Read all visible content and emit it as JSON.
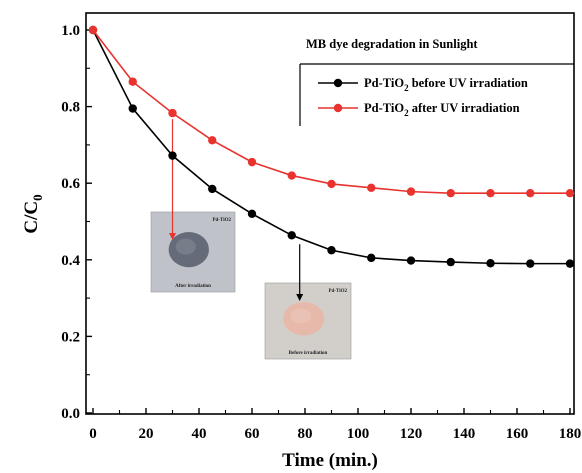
{
  "chart_data": {
    "type": "line",
    "title": "MB dye degradation in Sunlight",
    "xlabel": "Time (min.)",
    "ylabel": {
      "base": "C/C",
      "sub": "0"
    },
    "xlim": [
      0,
      180
    ],
    "ylim": [
      0.0,
      1.0
    ],
    "x_ticks": [
      "0",
      "20",
      "40",
      "60",
      "80",
      "100",
      "120",
      "140",
      "160",
      "180"
    ],
    "y_ticks": [
      "0.0",
      "0.2",
      "0.4",
      "0.6",
      "0.8",
      "1.0"
    ],
    "legend_position": "top-right",
    "x": [
      0,
      15,
      30,
      45,
      60,
      75,
      90,
      105,
      120,
      135,
      150,
      165,
      180
    ],
    "series": [
      {
        "name": {
          "pre": "Pd-TiO",
          "sub": "2",
          "post": " before UV irradiation"
        },
        "color": "#000000",
        "values": [
          1.0,
          0.795,
          0.672,
          0.585,
          0.52,
          0.464,
          0.425,
          0.405,
          0.398,
          0.394,
          0.391,
          0.39,
          0.39
        ]
      },
      {
        "name": {
          "pre": "Pd-TiO",
          "sub": "2",
          "post": " after UV irradiation"
        },
        "color": "#e8332e",
        "values": [
          1.0,
          0.865,
          0.783,
          0.712,
          0.655,
          0.62,
          0.598,
          0.588,
          0.578,
          0.574,
          0.574,
          0.574,
          0.574
        ]
      }
    ],
    "insets": [
      {
        "label": "Pd-TiO2",
        "caption": "After irradiation",
        "powder_color": "#5d6472",
        "background": "#bfc2c8",
        "points_to_series": 1,
        "points_to_x": 30
      },
      {
        "label": "Pd-TiO2",
        "caption": "Before irradiation",
        "powder_color": "#e7b7a8",
        "background": "#d2cfcb",
        "points_to_series": 0,
        "points_to_x": 78
      }
    ]
  }
}
